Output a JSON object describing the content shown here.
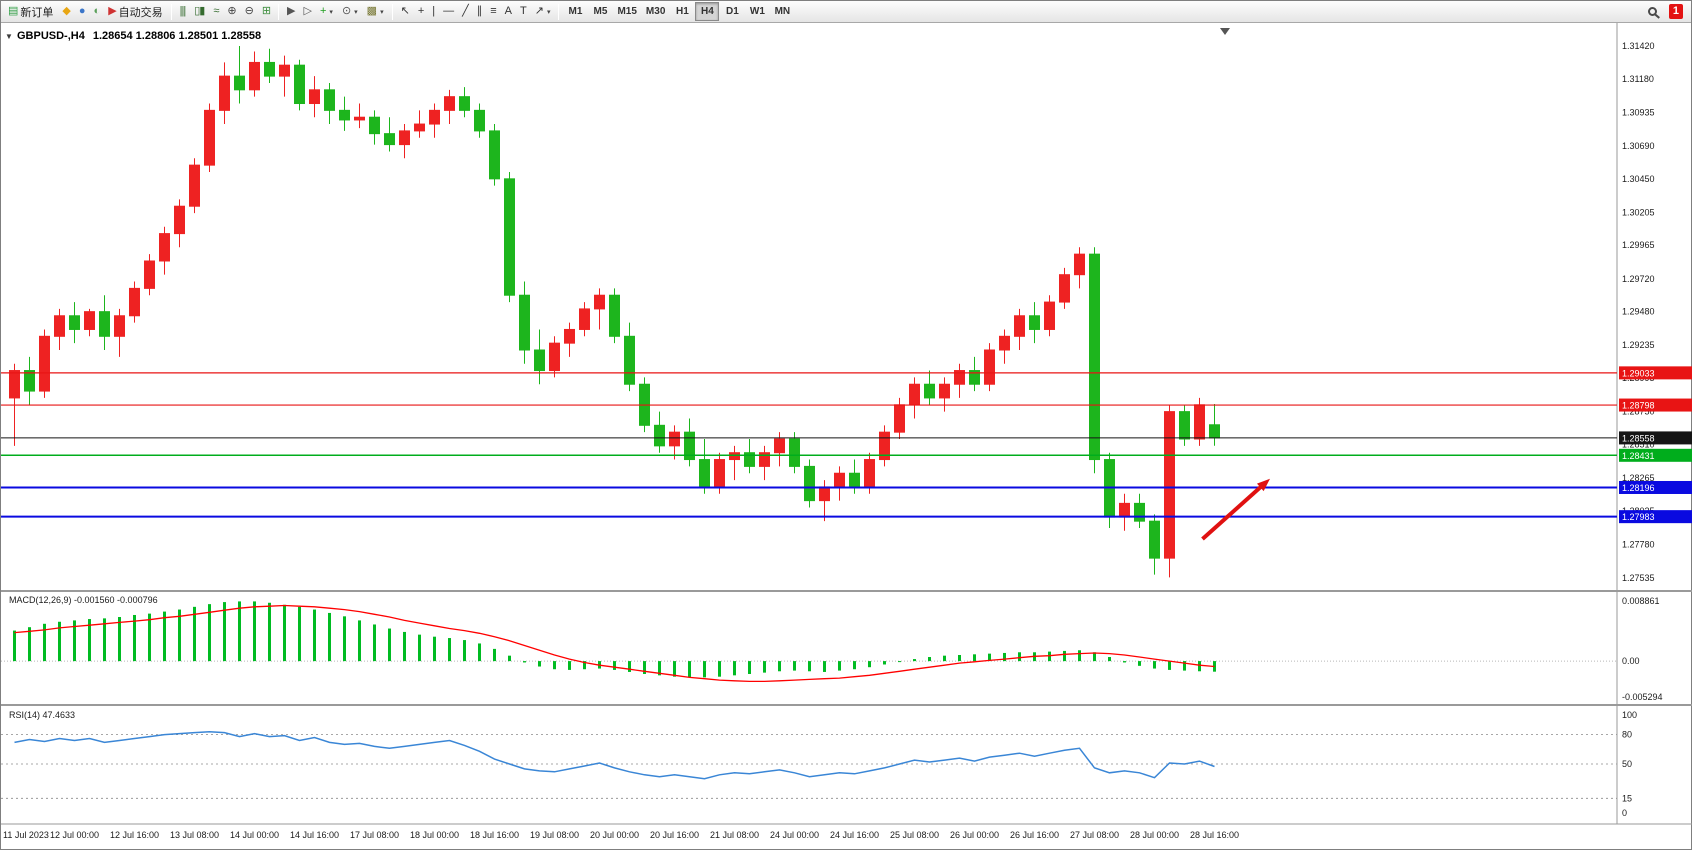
{
  "icons": {
    "collapse": "▼",
    "dropdown": "▾"
  },
  "toolbar": {
    "items": [
      {
        "name": "new-order-button",
        "icon": "new-order-icon",
        "glyph": "▤",
        "color": "#2f9e44",
        "label": "新订单"
      },
      {
        "name": "metaeditor-button",
        "icon": "metaeditor-icon",
        "glyph": "◆",
        "color": "#e8a613"
      },
      {
        "name": "market-watch-button",
        "icon": "market-watch-icon",
        "glyph": "●",
        "color": "#3b76c9"
      },
      {
        "name": "navigator-button",
        "icon": "navigator-icon",
        "glyph": "◐",
        "color": "#5aa05a"
      },
      {
        "name": "autotrading-button",
        "icon": "autotrading-icon",
        "glyph": "▶",
        "color": "#cf3333",
        "label": "自动交易"
      },
      {
        "type": "sep"
      },
      {
        "name": "bar-chart-button",
        "icon": "bar-chart-icon",
        "glyph": "|||",
        "color": "#356b2f"
      },
      {
        "name": "candlestick-chart-button",
        "icon": "candlestick-chart-icon",
        "glyph": "▯▮",
        "color": "#356b2f"
      },
      {
        "name": "line-chart-button",
        "icon": "line-chart-icon",
        "glyph": "≈",
        "color": "#356b2f"
      },
      {
        "name": "zoom-in-button",
        "icon": "zoom-in-icon",
        "glyph": "⊕",
        "color": "#444444"
      },
      {
        "name": "zoom-out-button",
        "icon": "zoom-out-icon",
        "glyph": "⊖",
        "color": "#444444"
      },
      {
        "name": "tile-windows-button",
        "icon": "tile-windows-icon",
        "glyph": "⊞",
        "color": "#3f8f3f"
      },
      {
        "type": "sep"
      },
      {
        "name": "auto-scroll-button",
        "icon": "auto-scroll-icon",
        "glyph": "▶",
        "color": "#555555"
      },
      {
        "name": "chart-shift-button",
        "icon": "chart-shift-icon",
        "glyph": "▷",
        "color": "#555555"
      },
      {
        "name": "indicators-button",
        "icon": "indicators-icon",
        "glyph": "+",
        "color": "#1f9e1f",
        "dropdown": true
      },
      {
        "name": "periods-button",
        "icon": "periods-icon",
        "glyph": "⊙",
        "color": "#555555",
        "dropdown": true
      },
      {
        "name": "templates-button",
        "icon": "templates-icon",
        "glyph": "▩",
        "color": "#777733",
        "dropdown": true
      },
      {
        "type": "sep"
      },
      {
        "name": "cursor-button",
        "icon": "cursor-icon",
        "glyph": "↖",
        "color": "#333333"
      },
      {
        "name": "crosshair-button",
        "icon": "crosshair-icon",
        "glyph": "+",
        "color": "#333333"
      },
      {
        "name": "vertical-line-button",
        "icon": "vertical-line-icon",
        "glyph": "|",
        "color": "#333333"
      },
      {
        "name": "horizontal-line-button",
        "icon": "horizontal-line-icon",
        "glyph": "—",
        "color": "#333333"
      },
      {
        "name": "trendline-button",
        "icon": "trendline-icon",
        "glyph": "╱",
        "color": "#333333"
      },
      {
        "name": "channel-button",
        "icon": "channel-icon",
        "glyph": "∥",
        "color": "#333333"
      },
      {
        "name": "fibonacci-button",
        "icon": "fibonacci-icon",
        "glyph": "≡",
        "color": "#333333"
      },
      {
        "name": "text-button",
        "icon": "text-icon",
        "glyph": "A",
        "color": "#333333"
      },
      {
        "name": "label-button",
        "icon": "label-icon",
        "glyph": "T",
        "color": "#333333"
      },
      {
        "name": "arrows-button",
        "icon": "arrows-icon",
        "glyph": "↗",
        "color": "#333333",
        "dropdown": true
      },
      {
        "type": "sep"
      }
    ],
    "timeframes": [
      "M1",
      "M5",
      "M15",
      "M30",
      "H1",
      "H4",
      "D1",
      "W1",
      "MN"
    ],
    "active_timeframe": "H4",
    "notification_count": "1"
  },
  "chart_header": {
    "title": "GBPUSD-,H4",
    "ohlc": "1.28654 1.28806 1.28501 1.28558"
  },
  "levels": [
    {
      "label": "1.29033",
      "value": 1.29033,
      "color": "#e81414",
      "width": 1.2
    },
    {
      "label": "1.28798",
      "value": 1.28798,
      "color": "#e81414",
      "width": 1.2
    },
    {
      "label": "1.28558",
      "value": 1.28558,
      "color": "#151515",
      "width": 1
    },
    {
      "label": "1.28431",
      "value": 1.28431,
      "color": "#00ad1c",
      "width": 1.5
    },
    {
      "label": "1.28196",
      "value": 1.28196,
      "color": "#0a0ae0",
      "width": 2
    },
    {
      "label": "1.27983",
      "value": 1.27983,
      "color": "#0a0ae0",
      "width": 2
    }
  ],
  "annotation_arrow": {
    "from_bar": 79.2,
    "from_price": 1.2782,
    "to_bar": 83.7,
    "to_price": 1.2826,
    "color": "#e01111"
  },
  "chart_data": [
    {
      "type": "candlestick",
      "symbol": "GBPUSD-",
      "timeframe": "H4",
      "up_color": "#ee2222",
      "down_color": "#1db51d",
      "ylim": [
        1.27535,
        1.3142
      ],
      "y_axis_labels": [
        "1.31420",
        "1.31180",
        "1.30935",
        "1.30690",
        "1.30450",
        "1.30205",
        "1.29965",
        "1.29720",
        "1.29480",
        "1.29235",
        "1.28995",
        "1.28750",
        "1.28510",
        "1.28265",
        "1.28025",
        "1.27780",
        "1.27535"
      ],
      "x_labels": [
        "11 Jul 2023",
        "12 Jul 00:00",
        "12 Jul 16:00",
        "13 Jul 08:00",
        "14 Jul 00:00",
        "14 Jul 16:00",
        "17 Jul 08:00",
        "18 Jul 00:00",
        "18 Jul 16:00",
        "19 Jul 08:00",
        "20 Jul 00:00",
        "20 Jul 16:00",
        "21 Jul 08:00",
        "24 Jul 00:00",
        "24 Jul 16:00",
        "25 Jul 08:00",
        "26 Jul 00:00",
        "26 Jul 16:00",
        "27 Jul 08:00",
        "28 Jul 00:00",
        "28 Jul 16:00"
      ],
      "label_every": 4,
      "candles": [
        [
          1.2885,
          1.291,
          1.285,
          1.2905
        ],
        [
          1.2905,
          1.2915,
          1.288,
          1.289
        ],
        [
          1.289,
          1.2935,
          1.2885,
          1.293
        ],
        [
          1.293,
          1.295,
          1.292,
          1.2945
        ],
        [
          1.2945,
          1.2955,
          1.2925,
          1.2935
        ],
        [
          1.2935,
          1.295,
          1.293,
          1.2948
        ],
        [
          1.2948,
          1.296,
          1.292,
          1.293
        ],
        [
          1.293,
          1.295,
          1.2915,
          1.2945
        ],
        [
          1.2945,
          1.297,
          1.294,
          1.2965
        ],
        [
          1.2965,
          1.299,
          1.296,
          1.2985
        ],
        [
          1.2985,
          1.301,
          1.2975,
          1.3005
        ],
        [
          1.3005,
          1.303,
          1.2995,
          1.3025
        ],
        [
          1.3025,
          1.306,
          1.302,
          1.3055
        ],
        [
          1.3055,
          1.31,
          1.305,
          1.3095
        ],
        [
          1.3095,
          1.313,
          1.3085,
          1.312
        ],
        [
          1.312,
          1.3142,
          1.31,
          1.311
        ],
        [
          1.311,
          1.3138,
          1.3105,
          1.313
        ],
        [
          1.313,
          1.314,
          1.3115,
          1.312
        ],
        [
          1.312,
          1.3135,
          1.3105,
          1.3128
        ],
        [
          1.3128,
          1.3132,
          1.3095,
          1.31
        ],
        [
          1.31,
          1.312,
          1.309,
          1.311
        ],
        [
          1.311,
          1.3115,
          1.3085,
          1.3095
        ],
        [
          1.3095,
          1.3105,
          1.308,
          1.3088
        ],
        [
          1.3088,
          1.31,
          1.3082,
          1.309
        ],
        [
          1.309,
          1.3095,
          1.307,
          1.3078
        ],
        [
          1.3078,
          1.309,
          1.3065,
          1.307
        ],
        [
          1.307,
          1.3085,
          1.306,
          1.308
        ],
        [
          1.308,
          1.3095,
          1.3075,
          1.3085
        ],
        [
          1.3085,
          1.31,
          1.3075,
          1.3095
        ],
        [
          1.3095,
          1.311,
          1.3085,
          1.3105
        ],
        [
          1.3105,
          1.3112,
          1.309,
          1.3095
        ],
        [
          1.3095,
          1.31,
          1.3075,
          1.308
        ],
        [
          1.308,
          1.3085,
          1.304,
          1.3045
        ],
        [
          1.3045,
          1.305,
          1.2955,
          1.296
        ],
        [
          1.296,
          1.297,
          1.291,
          1.292
        ],
        [
          1.292,
          1.2935,
          1.2895,
          1.2905
        ],
        [
          1.2905,
          1.293,
          1.29,
          1.2925
        ],
        [
          1.2925,
          1.294,
          1.2915,
          1.2935
        ],
        [
          1.2935,
          1.2955,
          1.293,
          1.295
        ],
        [
          1.295,
          1.2965,
          1.2935,
          1.296
        ],
        [
          1.296,
          1.2965,
          1.2925,
          1.293
        ],
        [
          1.293,
          1.294,
          1.289,
          1.2895
        ],
        [
          1.2895,
          1.29,
          1.286,
          1.2865
        ],
        [
          1.2865,
          1.2875,
          1.2845,
          1.285
        ],
        [
          1.285,
          1.2865,
          1.284,
          1.286
        ],
        [
          1.286,
          1.287,
          1.2835,
          1.284
        ],
        [
          1.284,
          1.2855,
          1.2815,
          1.282
        ],
        [
          1.282,
          1.2845,
          1.2815,
          1.284
        ],
        [
          1.284,
          1.285,
          1.2825,
          1.2845
        ],
        [
          1.2845,
          1.2855,
          1.283,
          1.2835
        ],
        [
          1.2835,
          1.285,
          1.2825,
          1.2845
        ],
        [
          1.2845,
          1.286,
          1.2835,
          1.2855
        ],
        [
          1.2855,
          1.286,
          1.283,
          1.2835
        ],
        [
          1.2835,
          1.284,
          1.2805,
          1.281
        ],
        [
          1.281,
          1.2825,
          1.2795,
          1.282
        ],
        [
          1.282,
          1.2835,
          1.281,
          1.283
        ],
        [
          1.283,
          1.284,
          1.2815,
          1.282
        ],
        [
          1.282,
          1.2845,
          1.2815,
          1.284
        ],
        [
          1.284,
          1.2865,
          1.2835,
          1.286
        ],
        [
          1.286,
          1.2885,
          1.2855,
          1.288
        ],
        [
          1.288,
          1.29,
          1.287,
          1.2895
        ],
        [
          1.2895,
          1.2905,
          1.288,
          1.2885
        ],
        [
          1.2885,
          1.29,
          1.2875,
          1.2895
        ],
        [
          1.2895,
          1.291,
          1.2885,
          1.2905
        ],
        [
          1.2905,
          1.2915,
          1.289,
          1.2895
        ],
        [
          1.2895,
          1.2925,
          1.289,
          1.292
        ],
        [
          1.292,
          1.2935,
          1.291,
          1.293
        ],
        [
          1.293,
          1.295,
          1.292,
          1.2945
        ],
        [
          1.2945,
          1.2955,
          1.2925,
          1.2935
        ],
        [
          1.2935,
          1.296,
          1.293,
          1.2955
        ],
        [
          1.2955,
          1.298,
          1.295,
          1.2975
        ],
        [
          1.2975,
          1.2995,
          1.2965,
          1.299
        ],
        [
          1.299,
          1.2995,
          1.283,
          1.284
        ],
        [
          1.284,
          1.2845,
          1.279,
          1.2798
        ],
        [
          1.2798,
          1.2815,
          1.2788,
          1.2808
        ],
        [
          1.2808,
          1.2815,
          1.279,
          1.2795
        ],
        [
          1.2795,
          1.28,
          1.2756,
          1.2768
        ],
        [
          1.2768,
          1.288,
          1.2754,
          1.2875
        ],
        [
          1.2875,
          1.288,
          1.285,
          1.2855
        ],
        [
          1.2855,
          1.2885,
          1.285,
          1.288
        ],
        [
          1.28654,
          1.28806,
          1.28501,
          1.28558
        ]
      ]
    },
    {
      "type": "bar",
      "name": "MACD",
      "label": "MACD(12,26,9) -0.001560 -0.000796",
      "main_value": "-0.001560",
      "signal_value": "-0.000796",
      "color": "#00bb22",
      "signal_color": "#ff0000",
      "ylim": [
        -0.005294,
        0.008861
      ],
      "axis_labels": [
        "0.008861",
        "0.00",
        "-0.005294"
      ],
      "values": [
        0.0045,
        0.005,
        0.0055,
        0.0058,
        0.006,
        0.0062,
        0.0063,
        0.0065,
        0.0068,
        0.007,
        0.0073,
        0.0076,
        0.008,
        0.0084,
        0.0087,
        0.0088,
        0.0088,
        0.0086,
        0.0083,
        0.008,
        0.0076,
        0.0071,
        0.0066,
        0.006,
        0.0054,
        0.0048,
        0.0043,
        0.0039,
        0.0036,
        0.0034,
        0.0031,
        0.0026,
        0.0018,
        0.0008,
        -0.0002,
        -0.0008,
        -0.0012,
        -0.0013,
        -0.0012,
        -0.0011,
        -0.0013,
        -0.0016,
        -0.0019,
        -0.0021,
        -0.0023,
        -0.0024,
        -0.0024,
        -0.0023,
        -0.0021,
        -0.0019,
        -0.0017,
        -0.0015,
        -0.0014,
        -0.0015,
        -0.0016,
        -0.0014,
        -0.0012,
        -0.0009,
        -0.0005,
        -0.0001,
        0.0003,
        0.0006,
        0.0008,
        0.0009,
        0.001,
        0.0011,
        0.0012,
        0.0013,
        0.0013,
        0.0014,
        0.0015,
        0.0016,
        0.0013,
        0.0006,
        -0.0002,
        -0.0007,
        -0.0011,
        -0.0013,
        -0.0014,
        -0.0015,
        -0.00156
      ],
      "signal": [
        0.0042,
        0.0044,
        0.0046,
        0.0049,
        0.0051,
        0.0053,
        0.0055,
        0.0057,
        0.0059,
        0.0061,
        0.0064,
        0.0066,
        0.0069,
        0.0072,
        0.0075,
        0.0078,
        0.008,
        0.0081,
        0.0082,
        0.0081,
        0.008,
        0.0078,
        0.0076,
        0.0073,
        0.0069,
        0.0065,
        0.006,
        0.0056,
        0.0052,
        0.0048,
        0.0045,
        0.0041,
        0.0036,
        0.003,
        0.0023,
        0.0016,
        0.0009,
        0.0003,
        -0.0002,
        -0.0006,
        -0.0009,
        -0.0012,
        -0.0015,
        -0.0018,
        -0.0021,
        -0.0024,
        -0.0026,
        -0.0028,
        -0.0029,
        -0.003,
        -0.003,
        -0.0029,
        -0.0028,
        -0.0027,
        -0.0026,
        -0.0025,
        -0.0023,
        -0.0021,
        -0.0018,
        -0.0015,
        -0.0012,
        -0.0009,
        -0.0006,
        -0.0003,
        -0.0001,
        0.0001,
        0.0003,
        0.0005,
        0.0007,
        0.0008,
        0.001,
        0.0011,
        0.0012,
        0.0011,
        0.0009,
        0.0006,
        0.0003,
        0.0,
        -0.0003,
        -0.0006,
        -0.000796
      ]
    },
    {
      "type": "line",
      "name": "RSI",
      "label": "RSI(14) 47.4633",
      "value": "47.4633",
      "color": "#3a86d6",
      "ylim": [
        0,
        100
      ],
      "levels": [
        80,
        50,
        15
      ],
      "axis_labels": [
        "100",
        "80",
        "50",
        "15",
        "0"
      ],
      "values": [
        72,
        75,
        73,
        76,
        74,
        76,
        72,
        74,
        76,
        78,
        80,
        81,
        82,
        83,
        82,
        78,
        81,
        78,
        79,
        74,
        77,
        72,
        70,
        71,
        68,
        66,
        68,
        70,
        72,
        74,
        69,
        63,
        55,
        50,
        45,
        43,
        42,
        45,
        48,
        51,
        46,
        42,
        39,
        37,
        39,
        37,
        35,
        39,
        41,
        40,
        42,
        44,
        41,
        37,
        39,
        41,
        40,
        43,
        46,
        50,
        54,
        52,
        54,
        56,
        53,
        57,
        59,
        61,
        58,
        61,
        64,
        66,
        46,
        41,
        43,
        41,
        36,
        51,
        50,
        53,
        47.4633
      ]
    }
  ]
}
